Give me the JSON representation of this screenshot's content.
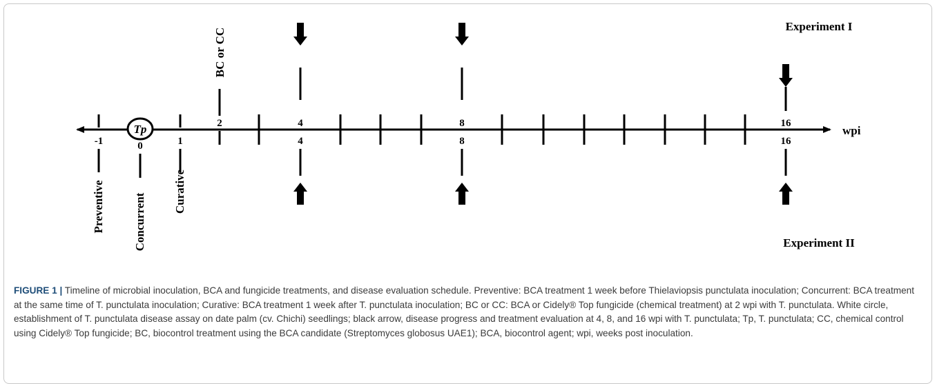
{
  "diagram": {
    "experiment_top": "Experiment I",
    "experiment_bottom": "Experiment II",
    "axis_unit": "wpi",
    "inoculation_circle": "Tp",
    "bc_cc_label": "BC or CC",
    "timing_labels": [
      "Preventive",
      "Concurrent",
      "Curative"
    ],
    "top_numbers": [
      "2",
      "4",
      "8",
      "16"
    ],
    "bottom_numbers": [
      "-1",
      "0",
      "1",
      "4",
      "8",
      "16"
    ]
  },
  "caption": {
    "label": "FIGURE 1 |",
    "text": " Timeline of microbial inoculation, BCA and fungicide treatments, and disease evaluation schedule. Preventive: BCA treatment 1 week before Thielaviopsis punctulata inoculation; Concurrent: BCA treatment at the same time of T. punctulata inoculation; Curative: BCA treatment 1 week after T. punctulata inoculation; BC or CC: BCA or Cidely® Top fungicide (chemical treatment) at 2 wpi with T. punctulata. White circle, establishment of T. punctulata disease assay on date palm (cv. Chichi) seedlings; black arrow, disease progress and treatment evaluation at 4, 8, and 16 wpi with T. punctulata; Tp, T. punctulata; CC, chemical control using Cidely® Top fungicide; BC, biocontrol treatment using the BCA candidate (Streptomyces globosus UAE1); BCA, biocontrol agent; wpi, weeks post inoculation."
  }
}
